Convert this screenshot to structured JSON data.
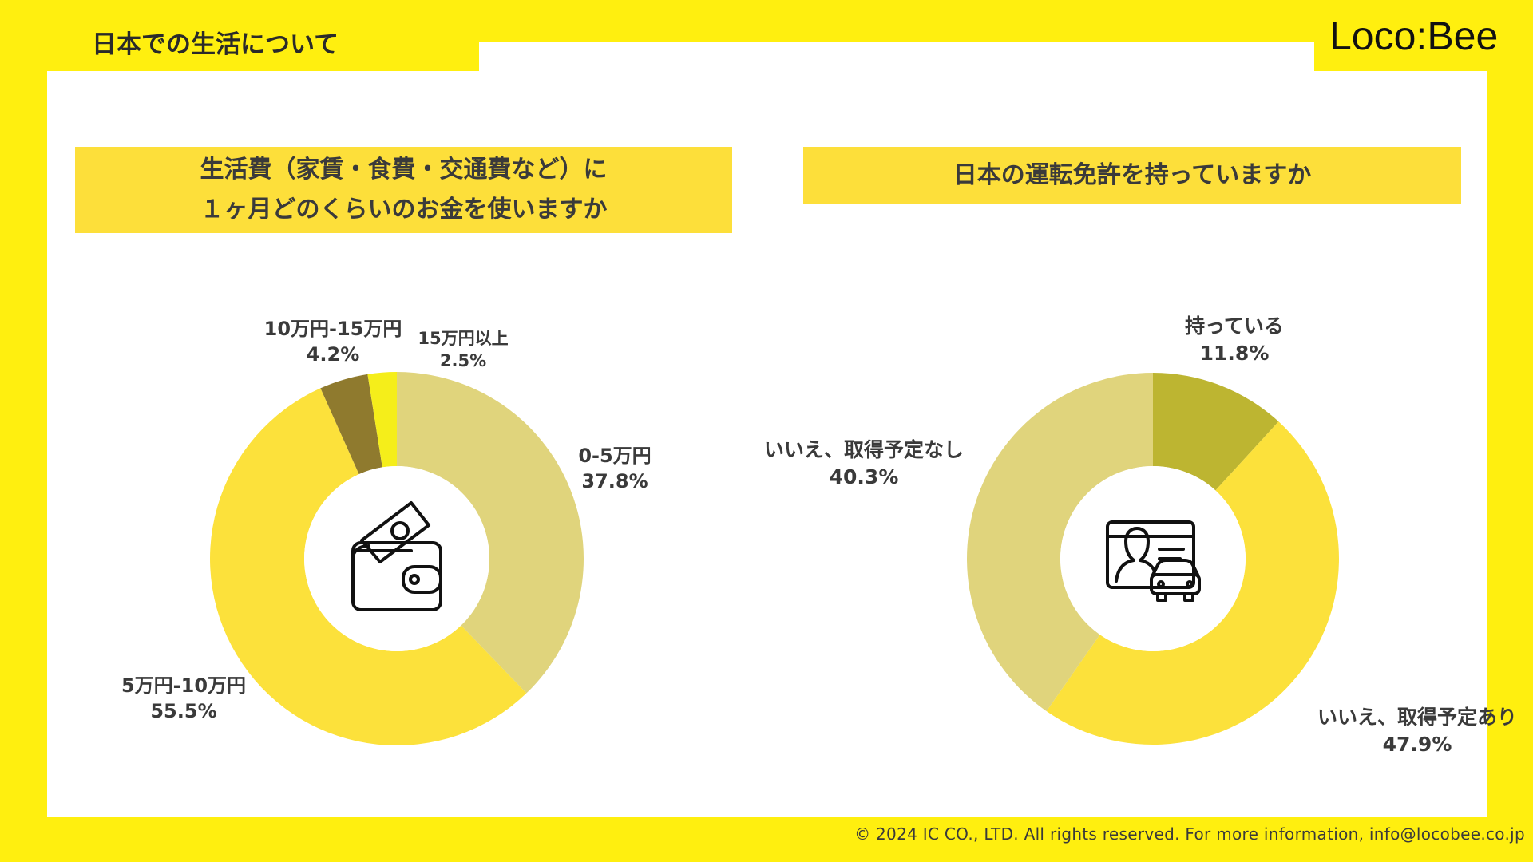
{
  "header": {
    "section_title": "日本での生活について",
    "logo_text": "Loco:Bee"
  },
  "colors": {
    "background": "#FFEF0F",
    "panel": "#FFFFFF",
    "question_box": "#FDDF3A"
  },
  "questions": {
    "left_line1": "生活費（家賃・食費・交通費など）に",
    "left_line2": "１ヶ月どのくらいのお金を使いますか",
    "right": "日本の運転免許を持っていますか"
  },
  "chart_data": [
    {
      "type": "pie",
      "donut": true,
      "icon": "wallet-icon",
      "slices": [
        {
          "label": "0-5万円",
          "value": 37.8,
          "pct_label": "37.8%",
          "color": "#E0D47C"
        },
        {
          "label": "5万円-10万円",
          "value": 55.5,
          "pct_label": "55.5%",
          "color": "#FCE13B"
        },
        {
          "label": "10万円-15万円",
          "value": 4.2,
          "pct_label": "4.2%",
          "color": "#8F7A2E"
        },
        {
          "label": "15万円以上",
          "value": 2.5,
          "pct_label": "2.5%",
          "color": "#F5EE1A"
        }
      ]
    },
    {
      "type": "pie",
      "donut": true,
      "icon": "driver-license-icon",
      "slices": [
        {
          "label": "持っている",
          "value": 11.8,
          "pct_label": "11.8%",
          "color": "#BDB531"
        },
        {
          "label": "いいえ、取得予定あり",
          "value": 47.9,
          "pct_label": "47.9%",
          "color": "#FCE13B"
        },
        {
          "label": "いいえ、取得予定なし",
          "value": 40.3,
          "pct_label": "40.3%",
          "color": "#E0D47C"
        }
      ]
    }
  ],
  "footer": {
    "text": "© 2024 IC CO., LTD. All rights reserved. For more information, info@locobee.co.jp"
  }
}
